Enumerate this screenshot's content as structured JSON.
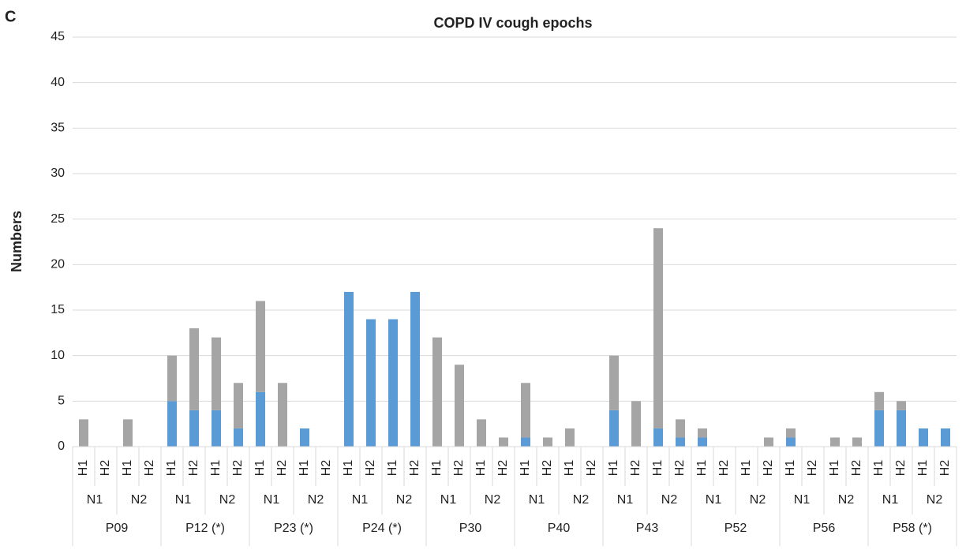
{
  "panel_label": "C",
  "chart_data": {
    "type": "stacked_bar",
    "title": "COPD IV cough epochs",
    "y_label": "Numbers",
    "categories": [
      "H1",
      "H2",
      "H1",
      "H2",
      "H1",
      "H2",
      "H1",
      "H2",
      "H1",
      "H2",
      "H1",
      "H2",
      "H1",
      "H2",
      "H1",
      "H2",
      "H1",
      "H2",
      "H1",
      "H2",
      "H1",
      "H2",
      "H1",
      "H2",
      "H1",
      "H2",
      "H1",
      "H2",
      "H1",
      "H2",
      "H1",
      "H2",
      "H1",
      "H2",
      "H1",
      "H2",
      "H1",
      "H2",
      "H1",
      "H2"
    ],
    "subgroups": [
      "N1",
      "N2",
      "N1",
      "N2",
      "N1",
      "N2",
      "N1",
      "N2",
      "N1",
      "N2",
      "N1",
      "N2",
      "N1",
      "N2",
      "N1",
      "N2",
      "N1",
      "N2",
      "N1",
      "N2"
    ],
    "groups": [
      "P09",
      "P12 (*)",
      "P23 (*)",
      "P24 (*)",
      "P30",
      "P40",
      "P43",
      "P52",
      "P56",
      "P58 (*)"
    ],
    "series": [
      {
        "color": "#5b9bd5",
        "values": [
          0,
          0,
          0,
          0,
          5,
          4,
          4,
          2,
          6,
          0,
          2,
          0,
          17,
          14,
          14,
          17,
          0,
          0,
          0,
          0,
          1,
          0,
          0,
          0,
          4,
          0,
          2,
          1,
          1,
          0,
          0,
          0,
          1,
          0,
          0,
          0,
          4,
          4,
          2,
          2
        ]
      },
      {
        "color": "#a5a5a5",
        "values": [
          3,
          0,
          3,
          0,
          5,
          9,
          8,
          5,
          10,
          7,
          0,
          0,
          0,
          0,
          0,
          0,
          12,
          9,
          3,
          1,
          6,
          1,
          2,
          0,
          6,
          5,
          22,
          2,
          1,
          0,
          0,
          1,
          1,
          0,
          1,
          1,
          2,
          1,
          0,
          0
        ]
      }
    ],
    "ylim": [
      0,
      45
    ],
    "yticks": [
      0,
      5,
      10,
      15,
      20,
      25,
      30,
      35,
      40,
      45
    ],
    "grid": true
  }
}
